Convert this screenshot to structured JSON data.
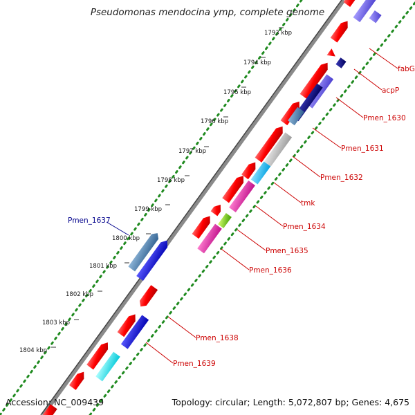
{
  "title": "Pseudomonas mendocina ymp, complete genome",
  "accession_label": "Accession: NC_009439",
  "topology_label": "Topology: circular; Length: 5,072,807 bp; Genes: 4,675",
  "colors": {
    "backbone": "#888888",
    "dots": "#1f8a1f",
    "gene_red": "#ff0000"
  },
  "ticks": [
    "1793 kbp",
    "1794 kbp",
    "1795 kbp",
    "1796 kbp",
    "1797 kbp",
    "1798 kbp",
    "1799 kbp",
    "1800 kbp",
    "1801 kbp",
    "1802 kbp",
    "1803 kbp",
    "1804 kbp"
  ],
  "gene_labels": [
    "fabG",
    "acpP",
    "Pmen_1630",
    "Pmen_1631",
    "Pmen_1632",
    "tmk",
    "Pmen_1634",
    "Pmen_1635",
    "Pmen_1636",
    "Pmen_1637",
    "Pmen_1638",
    "Pmen_1639"
  ]
}
